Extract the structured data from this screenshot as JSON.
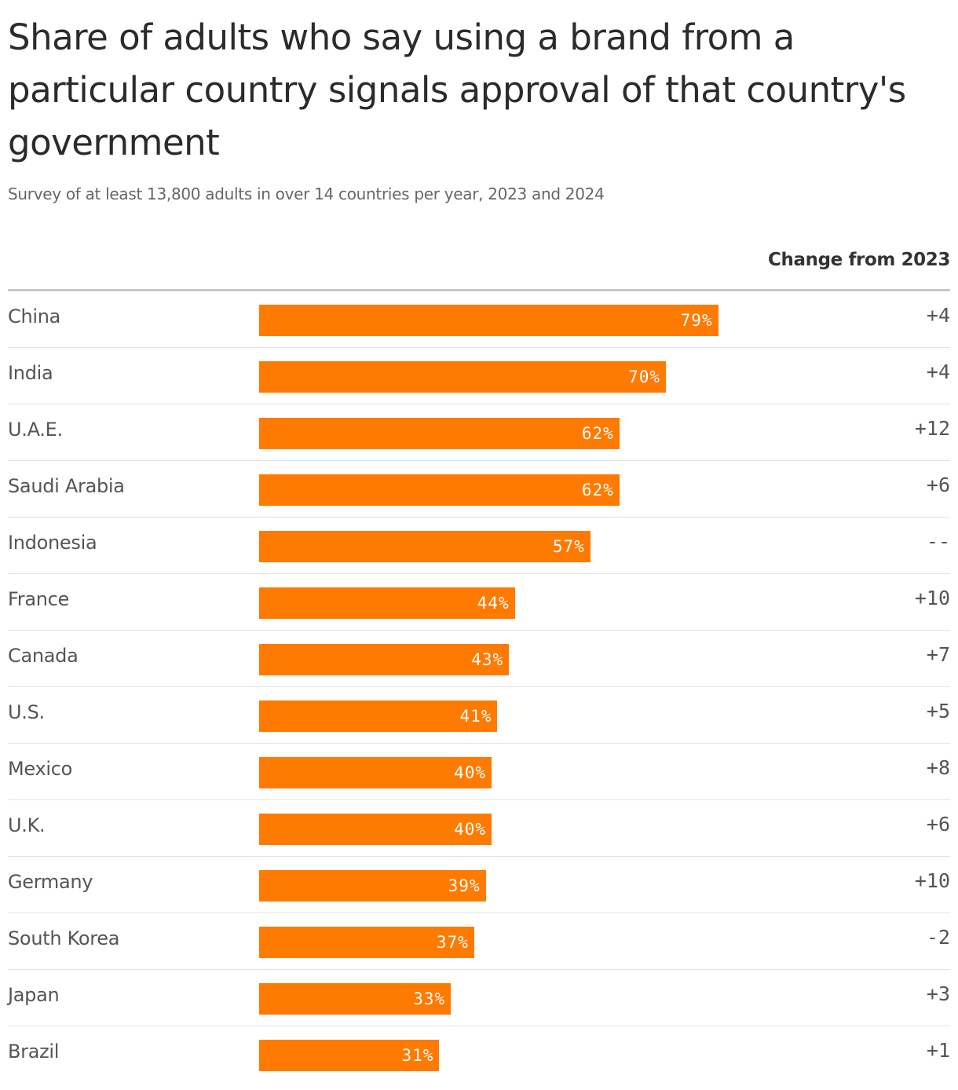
{
  "title": "Share of adults who say using a brand from a particular country signals approval of that country's government",
  "subtitle": "Survey of at least 13,800 adults in over 14 countries per year, 2023 and 2024",
  "colors": {
    "bar": "#ff7a00",
    "bar_label": "#ffffff",
    "text": "#555555",
    "rule": "#e3e3e3"
  },
  "chart_data": {
    "type": "bar",
    "orientation": "horizontal",
    "categories": [
      "China",
      "India",
      "U.A.E.",
      "Saudi Arabia",
      "Indonesia",
      "France",
      "Canada",
      "U.S.",
      "Mexico",
      "U.K.",
      "Germany",
      "South Korea",
      "Japan",
      "Brazil"
    ],
    "values": [
      79,
      70,
      62,
      62,
      57,
      44,
      43,
      41,
      40,
      40,
      39,
      37,
      33,
      31
    ],
    "value_labels": [
      "79%",
      "70%",
      "62%",
      "62%",
      "57%",
      "44%",
      "43%",
      "41%",
      "40%",
      "40%",
      "39%",
      "37%",
      "33%",
      "31%"
    ],
    "change_header": "Change from 2023",
    "changes": [
      "+4",
      "+4",
      "+12",
      "+6",
      "--",
      "+10",
      "+7",
      "+5",
      "+8",
      "+6",
      "+10",
      "-2",
      "+3",
      "+1"
    ],
    "xlim": [
      0,
      100
    ]
  }
}
